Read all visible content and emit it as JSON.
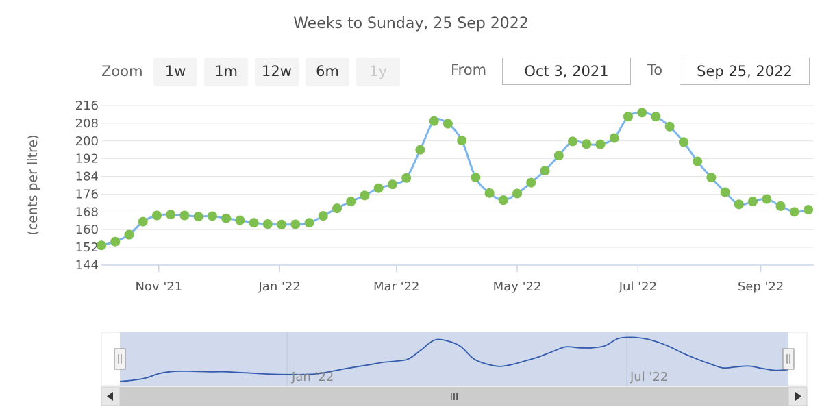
{
  "header": {
    "subtitle": "Weeks to Sunday, 25 Sep 2022"
  },
  "zoom": {
    "label": "Zoom",
    "buttons": [
      {
        "label": "1w",
        "enabled": true
      },
      {
        "label": "1m",
        "enabled": true
      },
      {
        "label": "12w",
        "enabled": true
      },
      {
        "label": "6m",
        "enabled": true
      },
      {
        "label": "1y",
        "enabled": false
      }
    ]
  },
  "range": {
    "from_label": "From",
    "from_value": "Oct 3, 2021",
    "to_label": "To",
    "to_value": "Sep 25, 2022"
  },
  "navigator": {
    "labels": [
      "Jan '22",
      "Jul '22"
    ],
    "scrollbar_grip": "III"
  },
  "colors": {
    "line": "#7cb5ec",
    "marker": "#7ebf50",
    "grid": "#e6e6e6",
    "navigator_fill": "#ccd6eb",
    "navigator_line": "#335cad"
  },
  "chart_data": {
    "type": "line",
    "title": "",
    "xlabel": "",
    "ylabel": "(cents per litre)",
    "ylim": [
      144,
      216
    ],
    "yticks": [
      144,
      152,
      160,
      168,
      176,
      184,
      192,
      200,
      208,
      216
    ],
    "xticks": [
      {
        "label": "Nov '21",
        "date": "2021-11-01"
      },
      {
        "label": "Jan '22",
        "date": "2022-01-01"
      },
      {
        "label": "Mar '22",
        "date": "2022-03-01"
      },
      {
        "label": "May '22",
        "date": "2022-05-01"
      },
      {
        "label": "Jul '22",
        "date": "2022-07-01"
      },
      {
        "label": "Sep '22",
        "date": "2022-09-01"
      }
    ],
    "grid": true,
    "legend": "none",
    "series": [
      {
        "x": [
          "2021-10-03",
          "2021-10-10",
          "2021-10-17",
          "2021-10-24",
          "2021-10-31",
          "2021-11-07",
          "2021-11-14",
          "2021-11-21",
          "2021-11-28",
          "2021-12-05",
          "2021-12-12",
          "2021-12-19",
          "2021-12-26",
          "2022-01-02",
          "2022-01-09",
          "2022-01-16",
          "2022-01-23",
          "2022-01-30",
          "2022-02-06",
          "2022-02-13",
          "2022-02-20",
          "2022-02-27",
          "2022-03-06",
          "2022-03-13",
          "2022-03-20",
          "2022-03-27",
          "2022-04-03",
          "2022-04-10",
          "2022-04-17",
          "2022-04-24",
          "2022-05-01",
          "2022-05-08",
          "2022-05-15",
          "2022-05-22",
          "2022-05-29",
          "2022-06-05",
          "2022-06-12",
          "2022-06-19",
          "2022-06-26",
          "2022-07-03",
          "2022-07-10",
          "2022-07-17",
          "2022-07-24",
          "2022-07-31",
          "2022-08-07",
          "2022-08-14",
          "2022-08-21",
          "2022-08-28",
          "2022-09-04",
          "2022-09-11",
          "2022-09-18",
          "2022-09-25"
        ],
        "values": [
          152.9,
          154.6,
          157.7,
          163.6,
          166.4,
          166.8,
          166.4,
          165.9,
          166.1,
          165.1,
          164.2,
          163.1,
          162.5,
          162.3,
          162.4,
          163.1,
          166.2,
          169.6,
          172.7,
          175.4,
          178.7,
          180.4,
          183.3,
          196.0,
          209.0,
          207.8,
          200.2,
          183.5,
          176.5,
          173.3,
          176.3,
          181.2,
          186.6,
          193.4,
          199.8,
          198.6,
          198.5,
          201.3,
          211.0,
          212.8,
          211.0,
          206.5,
          199.5,
          190.8,
          183.5,
          176.9,
          171.4,
          172.7,
          173.8,
          170.6,
          168.0,
          169.0
        ]
      }
    ]
  }
}
